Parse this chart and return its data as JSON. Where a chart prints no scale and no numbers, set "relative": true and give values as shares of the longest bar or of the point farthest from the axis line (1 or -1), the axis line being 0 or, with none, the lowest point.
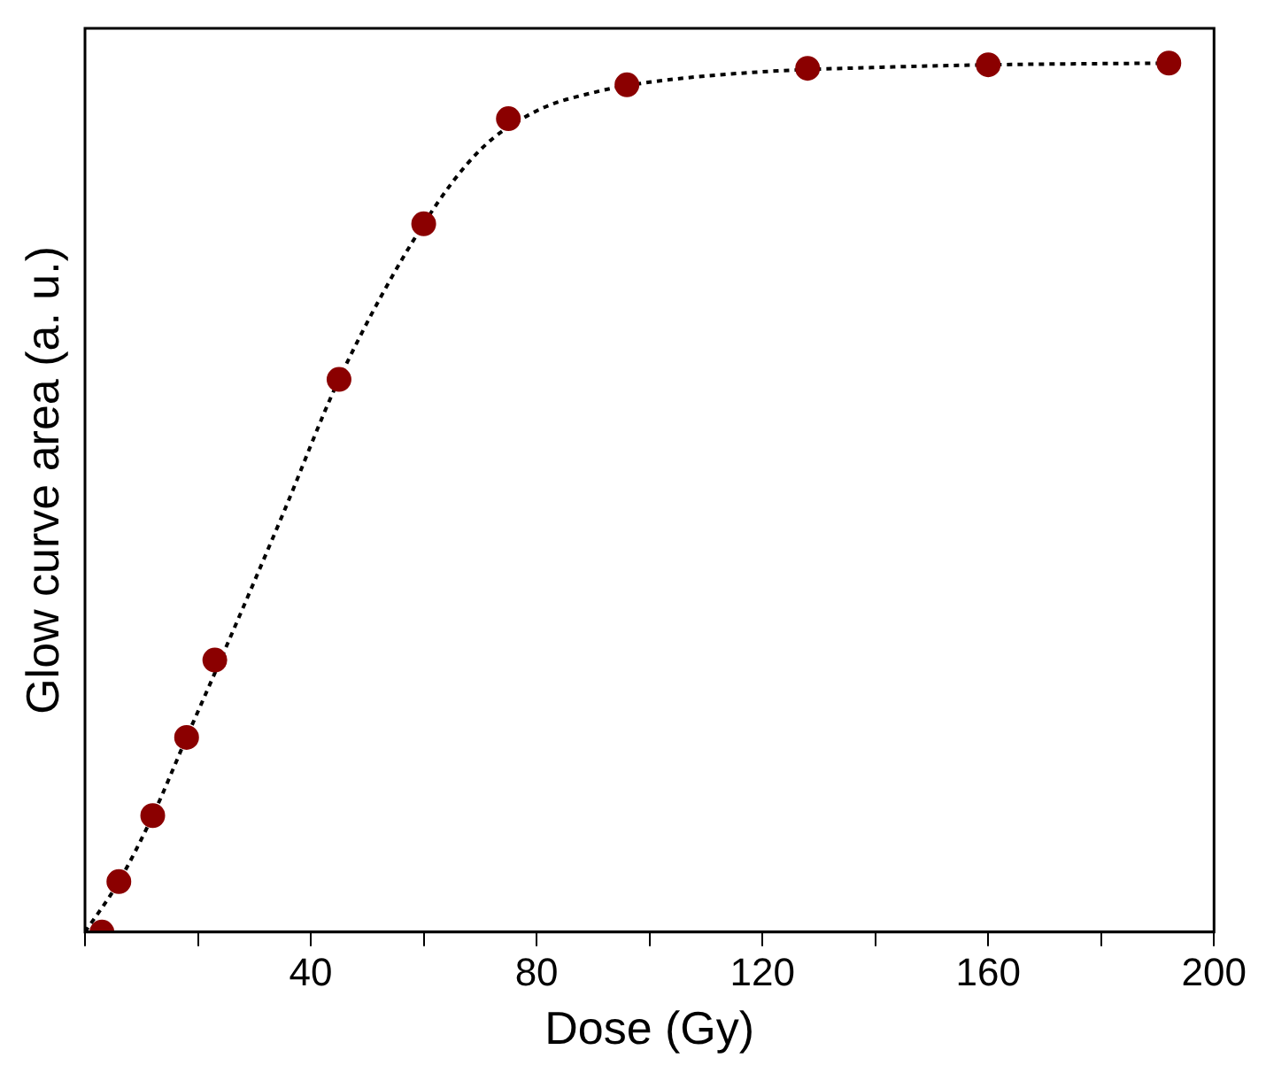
{
  "chart_data": {
    "type": "scatter",
    "xlabel": "Dose (Gy)",
    "ylabel": "Glow curve area (a. u.)",
    "relative": true,
    "xlim": [
      0,
      200
    ],
    "xticks": [
      {
        "value": 0,
        "label": null
      },
      {
        "value": 20,
        "label": null
      },
      40,
      {
        "value": 60,
        "label": null
      },
      80,
      {
        "value": 100,
        "label": null
      },
      120,
      {
        "value": 140,
        "label": null
      },
      160,
      {
        "value": 180,
        "label": null
      },
      200
    ],
    "grid": false,
    "legend": false,
    "marker": "circle",
    "series": [
      {
        "color": "#8b0000",
        "x": [
          3,
          6,
          12,
          18,
          23,
          45,
          60,
          75,
          96,
          128,
          160,
          192
        ],
        "values": [
          0,
          0.058,
          0.134,
          0.224,
          0.313,
          0.636,
          0.815,
          0.936,
          0.975,
          0.994,
          0.998,
          1
        ]
      },
      {
        "type": "line",
        "color": "#000000",
        "line_style": "dotted",
        "marker": "none",
        "x": [
          0,
          6,
          12,
          18,
          24,
          35,
          45,
          60,
          70,
          80,
          90,
          100,
          120,
          140,
          160,
          192
        ],
        "values": [
          0,
          0.058,
          0.134,
          0.224,
          0.313,
          0.48,
          0.636,
          0.815,
          0.9,
          0.945,
          0.966,
          0.978,
          0.99,
          0.995,
          0.998,
          1
        ]
      }
    ]
  }
}
